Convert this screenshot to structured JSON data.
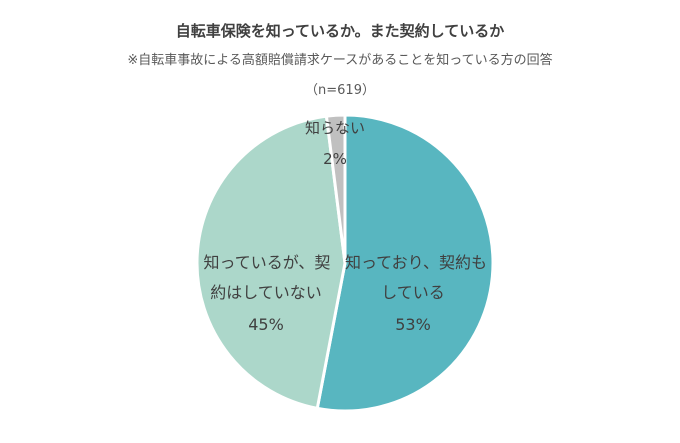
{
  "title": "自転車保険を知っているか。また契約しているか",
  "subtitle": "※自転車事故による高額賠償請求ケースがあることを知っている方の回答",
  "sample": "（n=619）",
  "colors": {
    "slice_aware_insured": "#58b6c0",
    "slice_aware_not_insured": "#acd7ca",
    "slice_not_aware": "#c0c0c0",
    "border": "#ffffff"
  },
  "chart_data": {
    "type": "pie",
    "title": "自転車保険を知っているか。また契約しているか",
    "slices": [
      {
        "label_lines": [
          "知っており、契約も",
          "している"
        ],
        "value": 53,
        "value_label": "53%",
        "color": "#58b6c0"
      },
      {
        "label_lines": [
          "知っているが、契",
          "約はしていない"
        ],
        "value": 45,
        "value_label": "45%",
        "color": "#acd7ca"
      },
      {
        "label_lines": [
          "知らない"
        ],
        "value": 2,
        "value_label": "2%",
        "color": "#c0c0c0"
      }
    ]
  }
}
